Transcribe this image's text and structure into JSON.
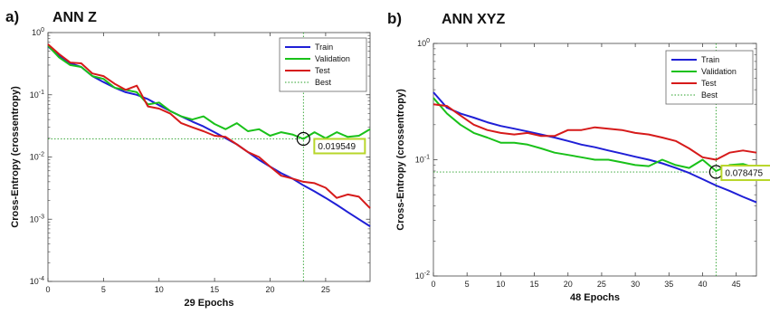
{
  "chart_data": [
    {
      "panel_label": "a)",
      "title": "ANN Z",
      "type": "line",
      "xlabel": "29 Epochs",
      "ylabel": "Cross-Entropy  (crossentropy)",
      "xlim": [
        0,
        29
      ],
      "ylim": [
        0.0001,
        1
      ],
      "yscale": "log",
      "x_ticks": [
        0,
        5,
        10,
        15,
        20,
        25
      ],
      "y_ticks": [
        {
          "value": 0.0001,
          "base": "10",
          "exp": "-4"
        },
        {
          "value": 0.001,
          "base": "10",
          "exp": "-3"
        },
        {
          "value": 0.01,
          "base": "10",
          "exp": "-2"
        },
        {
          "value": 0.1,
          "base": "10",
          "exp": "-1"
        },
        {
          "value": 1,
          "base": "10",
          "exp": "0"
        }
      ],
      "legend_position": "top-right",
      "legend": [
        "Train",
        "Validation",
        "Test",
        "Best"
      ],
      "series": [
        {
          "name": "Train",
          "color": "#1f1fd6",
          "x": [
            0,
            1,
            2,
            3,
            4,
            5,
            6,
            7,
            8,
            9,
            10,
            11,
            12,
            13,
            14,
            15,
            16,
            17,
            18,
            19,
            20,
            21,
            22,
            23,
            24,
            25,
            26,
            27,
            28,
            29
          ],
          "values": [
            0.6,
            0.42,
            0.32,
            0.28,
            0.2,
            0.16,
            0.13,
            0.11,
            0.1,
            0.085,
            0.068,
            0.055,
            0.045,
            0.037,
            0.031,
            0.025,
            0.02,
            0.016,
            0.012,
            0.009,
            0.007,
            0.0055,
            0.0045,
            0.0035,
            0.0028,
            0.0022,
            0.0017,
            0.0013,
            0.001,
            0.00077
          ]
        },
        {
          "name": "Validation",
          "color": "#19c119",
          "x": [
            0,
            1,
            2,
            3,
            4,
            5,
            6,
            7,
            8,
            9,
            10,
            11,
            12,
            13,
            14,
            15,
            16,
            17,
            18,
            19,
            20,
            21,
            22,
            23,
            24,
            25,
            26,
            27,
            28,
            29
          ],
          "values": [
            0.62,
            0.4,
            0.3,
            0.28,
            0.2,
            0.18,
            0.13,
            0.12,
            0.11,
            0.07,
            0.075,
            0.055,
            0.045,
            0.04,
            0.045,
            0.034,
            0.028,
            0.035,
            0.026,
            0.028,
            0.022,
            0.025,
            0.023,
            0.019549,
            0.025,
            0.02,
            0.025,
            0.021,
            0.022,
            0.028
          ]
        },
        {
          "name": "Test",
          "color": "#d61a1a",
          "x": [
            0,
            1,
            2,
            3,
            4,
            5,
            6,
            7,
            8,
            9,
            10,
            11,
            12,
            13,
            14,
            15,
            16,
            17,
            18,
            19,
            20,
            21,
            22,
            23,
            24,
            25,
            26,
            27,
            28,
            29
          ],
          "values": [
            0.65,
            0.45,
            0.33,
            0.32,
            0.22,
            0.2,
            0.15,
            0.12,
            0.14,
            0.065,
            0.06,
            0.05,
            0.035,
            0.03,
            0.026,
            0.022,
            0.021,
            0.016,
            0.012,
            0.01,
            0.007,
            0.005,
            0.0045,
            0.004,
            0.0038,
            0.0032,
            0.0022,
            0.0025,
            0.0023,
            0.0015
          ]
        }
      ],
      "best": {
        "epoch": 23,
        "value": 0.019549,
        "label": "0.019549"
      }
    },
    {
      "panel_label": "b)",
      "title": "ANN XYZ",
      "type": "line",
      "xlabel": "48 Epochs",
      "ylabel": "Cross-Entropy  (crossentropy)",
      "xlim": [
        0,
        48
      ],
      "ylim": [
        0.01,
        1
      ],
      "yscale": "log",
      "x_ticks": [
        0,
        5,
        10,
        15,
        20,
        25,
        30,
        35,
        40,
        45
      ],
      "y_ticks": [
        {
          "value": 0.01,
          "base": "10",
          "exp": "-2"
        },
        {
          "value": 0.1,
          "base": "10",
          "exp": "-1"
        },
        {
          "value": 1,
          "base": "10",
          "exp": "0"
        }
      ],
      "legend_position": "top-right",
      "legend": [
        "Train",
        "Validation",
        "Test",
        "Best"
      ],
      "series": [
        {
          "name": "Train",
          "color": "#1f1fd6",
          "x": [
            0,
            2,
            4,
            6,
            8,
            10,
            12,
            14,
            16,
            18,
            20,
            22,
            24,
            26,
            28,
            30,
            32,
            34,
            36,
            38,
            40,
            42,
            44,
            46,
            48
          ],
          "values": [
            0.38,
            0.28,
            0.25,
            0.23,
            0.21,
            0.195,
            0.185,
            0.175,
            0.165,
            0.155,
            0.145,
            0.135,
            0.128,
            0.12,
            0.113,
            0.106,
            0.1,
            0.093,
            0.085,
            0.077,
            0.068,
            0.06,
            0.054,
            0.048,
            0.043
          ]
        },
        {
          "name": "Validation",
          "color": "#19c119",
          "x": [
            0,
            2,
            4,
            6,
            8,
            10,
            12,
            14,
            16,
            18,
            20,
            22,
            24,
            26,
            28,
            30,
            32,
            34,
            36,
            38,
            40,
            42,
            44,
            46,
            48
          ],
          "values": [
            0.34,
            0.25,
            0.2,
            0.17,
            0.155,
            0.14,
            0.14,
            0.135,
            0.125,
            0.115,
            0.11,
            0.105,
            0.1,
            0.1,
            0.095,
            0.09,
            0.088,
            0.1,
            0.09,
            0.085,
            0.1,
            0.08,
            0.09,
            0.092,
            0.085
          ]
        },
        {
          "name": "Test",
          "color": "#d61a1a",
          "x": [
            0,
            2,
            4,
            6,
            8,
            10,
            12,
            14,
            16,
            18,
            20,
            22,
            24,
            26,
            28,
            30,
            32,
            34,
            36,
            38,
            40,
            42,
            44,
            46,
            48
          ],
          "values": [
            0.3,
            0.29,
            0.24,
            0.2,
            0.18,
            0.17,
            0.165,
            0.17,
            0.16,
            0.16,
            0.18,
            0.18,
            0.19,
            0.185,
            0.18,
            0.17,
            0.165,
            0.155,
            0.145,
            0.125,
            0.105,
            0.1,
            0.115,
            0.12,
            0.115
          ]
        }
      ],
      "best": {
        "epoch": 42,
        "value": 0.078475,
        "label": "0.078475"
      }
    }
  ]
}
